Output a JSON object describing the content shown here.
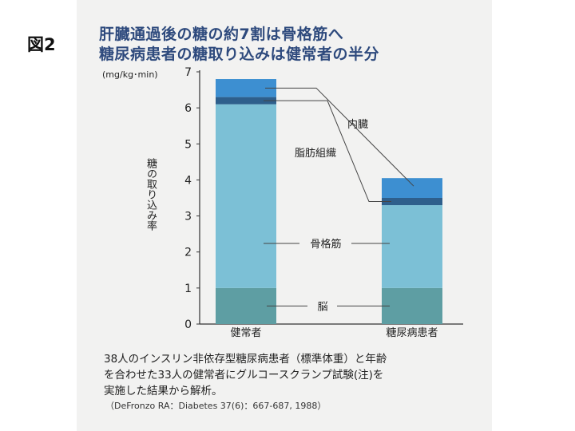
{
  "figure_label": "図2",
  "title_lines": [
    "肝臓通過後の糖の約7割は骨格筋へ",
    "糖尿病患者の糖取り込みは健常者の半分"
  ],
  "notes": [
    "38人のインスリン非依存型糖尿病患者（標準体重）と年齢",
    "を合わせた33人の健常者にグルコースクランプ試験(注)を",
    "実施した結果から解析。"
  ],
  "citation": "（DeFronzo RA：Diabetes 37(6)：667-687, 1988）",
  "chart_data": {
    "type": "bar",
    "stacked": true,
    "unit_label": "(mg/kg･min)",
    "ylabel": "糖の取り込み率",
    "ylim": [
      0,
      7
    ],
    "yticks": [
      0,
      1,
      2,
      3,
      4,
      5,
      6,
      7
    ],
    "categories": [
      "健常者",
      "糖尿病患者"
    ],
    "series": [
      {
        "name": "脳",
        "values": [
          1.0,
          1.0
        ],
        "color": "#5e9ea3"
      },
      {
        "name": "骨格筋",
        "values": [
          5.1,
          2.3
        ],
        "color": "#7cc0d6"
      },
      {
        "name": "脂肪組織",
        "values": [
          0.2,
          0.2
        ],
        "color": "#2e5f8c"
      },
      {
        "name": "内臓",
        "values": [
          0.5,
          0.55
        ],
        "color": "#3d8fd1"
      }
    ],
    "grid": false
  }
}
